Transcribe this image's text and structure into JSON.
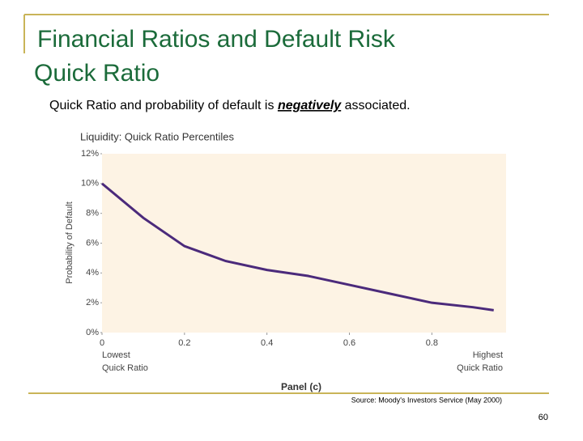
{
  "slide": {
    "title_lines": [
      "Financial Ratios and Default Risk",
      "Quick Ratio"
    ],
    "subtitle_parts": [
      "Quick Ratio and probability of default is ",
      "negatively",
      " associated."
    ],
    "source": "Source: Moody's Investors Service (May 2000)",
    "page_number": "60"
  },
  "chart_data": {
    "type": "line",
    "title": "Liquidity: Quick Ratio Percentiles",
    "y_label": "Probability of Default",
    "panel_label": "Panel (c)",
    "low_label": [
      "Lowest",
      "Quick Ratio"
    ],
    "high_label": [
      "Highest",
      "Quick Ratio"
    ],
    "x": [
      0,
      0.1,
      0.2,
      0.3,
      0.4,
      0.5,
      0.6,
      0.7,
      0.8,
      0.9,
      0.95
    ],
    "values": [
      10,
      7.7,
      5.8,
      4.8,
      4.2,
      3.8,
      3.2,
      2.6,
      2.0,
      1.7,
      1.5
    ],
    "color": "#4b2a7b",
    "background": "#fdf3e4",
    "xlim": [
      0,
      0.98
    ],
    "ylim": [
      0,
      12
    ],
    "xticks": [
      0,
      0.2,
      0.4,
      0.6,
      0.8
    ],
    "yticks": [
      {
        "value": 0,
        "label": "0%"
      },
      {
        "value": 2,
        "label": "2%"
      },
      {
        "value": 4,
        "label": "4%"
      },
      {
        "value": 6,
        "label": "6%"
      },
      {
        "value": 8,
        "label": "8%"
      },
      {
        "value": 10,
        "label": "10%"
      },
      {
        "value": 12,
        "label": "12%"
      }
    ]
  }
}
